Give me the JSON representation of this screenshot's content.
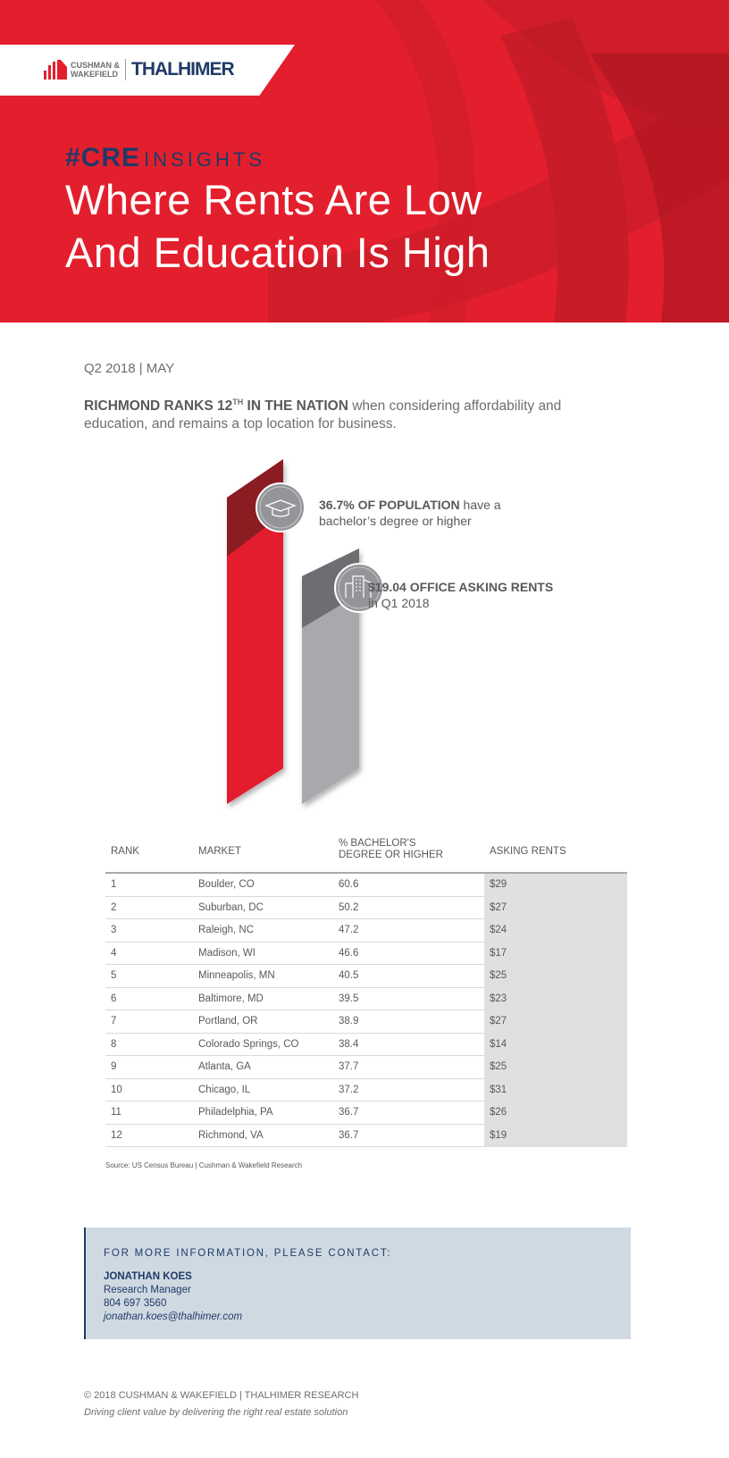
{
  "header": {
    "brand_left": "CUSHMAN &",
    "brand_left2": "WAKEFIELD",
    "brand_right": "THALHIMER",
    "series_hash": "#CRE",
    "series_word": "INSIGHTS",
    "title_line1": "Where Rents Are Low",
    "title_line2": "And Education Is High",
    "colors": {
      "red": "#e31f2d",
      "navy": "#1f3a68"
    }
  },
  "intro": {
    "date": "Q2 2018 | MAY",
    "lead_bold": "RICHMOND RANKS 12",
    "lead_sup": "TH",
    "lead_bold2": " IN THE NATION",
    "lead_rest": " when considering affordability and education, and remains a top location for business."
  },
  "stats": [
    {
      "icon": "graduation-cap-icon",
      "bold": "36.7% OF POPULATION",
      "text1": " have a",
      "text2": "bachelor’s degree or higher"
    },
    {
      "icon": "office-building-icon",
      "bold": "$19.04 OFFICE ASKING RENTS",
      "text2": "in Q1 2018"
    }
  ],
  "table": {
    "headers": [
      "RANK",
      "MARKET",
      "% BACHELOR'S",
      "DEGREE OR HIGHER",
      "ASKING RENTS"
    ],
    "rows": [
      [
        "1",
        "Boulder, CO",
        "60.6",
        "$29"
      ],
      [
        "2",
        "Suburban, DC",
        "50.2",
        "$27"
      ],
      [
        "3",
        "Raleigh, NC",
        "47.2",
        "$24"
      ],
      [
        "4",
        "Madison, WI",
        "46.6",
        "$17"
      ],
      [
        "5",
        "Minneapolis, MN",
        "40.5",
        "$25"
      ],
      [
        "6",
        "Baltimore, MD",
        "39.5",
        "$23"
      ],
      [
        "7",
        "Portland, OR",
        "38.9",
        "$27"
      ],
      [
        "8",
        "Colorado Springs, CO",
        "38.4",
        "$14"
      ],
      [
        "9",
        "Atlanta, GA",
        "37.7",
        "$25"
      ],
      [
        "10",
        "Chicago, IL",
        "37.2",
        "$31"
      ],
      [
        "11",
        "Philadelphia, PA",
        "36.7",
        "$26"
      ],
      [
        "12",
        "Richmond, VA",
        "36.7",
        "$19"
      ]
    ],
    "source": "Source: US Census Bureau | Cushman & Wakefield Research"
  },
  "contact": {
    "heading": "FOR MORE INFORMATION, PLEASE CONTACT:",
    "name": "JONATHAN KOES",
    "role": "Research Manager",
    "phone": "804 697 3560",
    "email": "jonathan.koes@thalhimer.com"
  },
  "footer": {
    "copyright": "© 2018 CUSHMAN & WAKEFIELD | THALHIMER RESEARCH",
    "tagline": "Driving client value by delivering the right real estate solution"
  }
}
